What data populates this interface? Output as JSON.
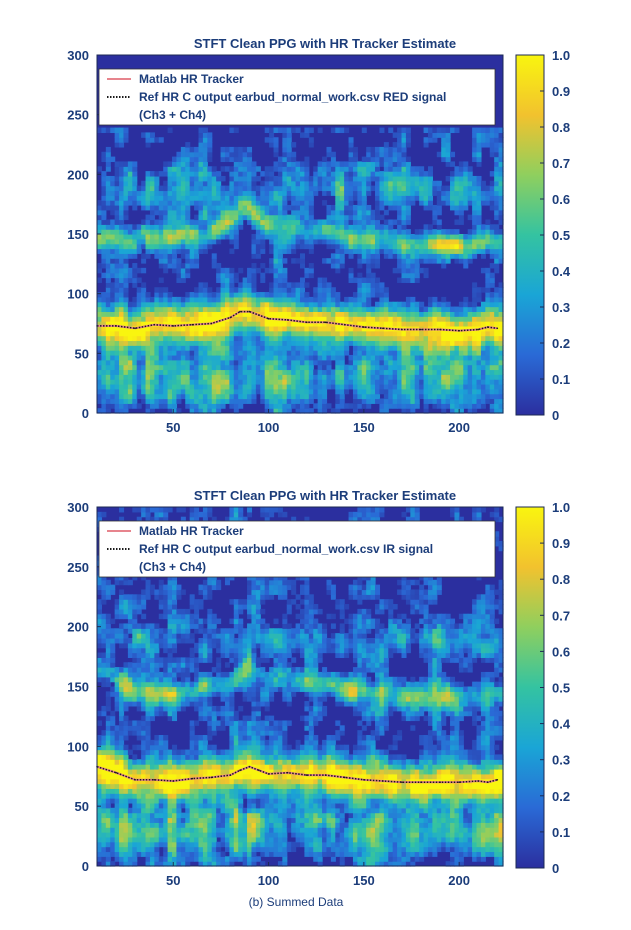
{
  "chart_data": [
    {
      "type": "heatmap",
      "title": "STFT Clean PPG with HR Tracker Estimate",
      "xlim": [
        10,
        223
      ],
      "ylim": [
        0,
        300
      ],
      "x_ticks": [
        50,
        100,
        150,
        200
      ],
      "y_ticks": [
        0,
        50,
        100,
        150,
        200,
        250,
        300
      ],
      "colorbar": {
        "min": 0,
        "max": 1.0,
        "ticks": [
          "0",
          "0.1",
          "0.2",
          "0.3",
          "0.4",
          "0.5",
          "0.6",
          "0.7",
          "0.8",
          "0.9",
          "1.0"
        ]
      },
      "colormap": [
        "#2b2f9f",
        "#2a6ad6",
        "#1aa5d6",
        "#34c3a1",
        "#8fcf5e",
        "#f2c22e",
        "#f9f50f"
      ],
      "legend": {
        "placement": "top-left",
        "entries": [
          {
            "label": "Matlab HR Tracker",
            "style": "solid",
            "color": "#e7848d"
          },
          {
            "label": "Ref HR C output earbud_normal_work.csv RED signal",
            "style": "dotted",
            "color": "#1a1a1a"
          },
          {
            "label": "(Ch3 + Ch4)",
            "style": "none",
            "color": ""
          }
        ]
      },
      "series": [
        {
          "x": [
            10,
            20,
            30,
            40,
            50,
            60,
            70,
            80,
            85,
            90,
            95,
            100,
            110,
            120,
            130,
            140,
            150,
            160,
            170,
            180,
            190,
            200,
            210,
            215,
            220
          ],
          "y": [
            73,
            73,
            71,
            74,
            73,
            74,
            75,
            80,
            85,
            85,
            82,
            79,
            78,
            76,
            76,
            74,
            72,
            71,
            70,
            70,
            70,
            69,
            70,
            72,
            71
          ]
        }
      ]
    },
    {
      "type": "heatmap",
      "title": "STFT Clean PPG with HR Tracker Estimate",
      "xlim": [
        10,
        223
      ],
      "ylim": [
        0,
        300
      ],
      "x_ticks": [
        50,
        100,
        150,
        200
      ],
      "y_ticks": [
        0,
        50,
        100,
        150,
        200,
        250,
        300
      ],
      "colorbar": {
        "min": 0,
        "max": 1.0,
        "ticks": [
          "0",
          "0.1",
          "0.2",
          "0.3",
          "0.4",
          "0.5",
          "0.6",
          "0.7",
          "0.8",
          "0.9",
          "1.0"
        ]
      },
      "colormap": [
        "#2b2f9f",
        "#2a6ad6",
        "#1aa5d6",
        "#34c3a1",
        "#8fcf5e",
        "#f2c22e",
        "#f9f50f"
      ],
      "legend": {
        "placement": "top-left",
        "entries": [
          {
            "label": "Matlab HR Tracker",
            "style": "solid",
            "color": "#e7848d"
          },
          {
            "label": "Ref HR C output earbud_normal_work.csv IR signal",
            "style": "dotted",
            "color": "#1a1a1a"
          },
          {
            "label": "(Ch3 + Ch4)",
            "style": "none",
            "color": ""
          }
        ]
      },
      "series": [
        {
          "x": [
            10,
            20,
            30,
            40,
            50,
            60,
            70,
            80,
            85,
            90,
            95,
            100,
            110,
            120,
            130,
            140,
            150,
            160,
            170,
            180,
            190,
            200,
            210,
            215,
            220
          ],
          "y": [
            83,
            78,
            72,
            72,
            71,
            73,
            74,
            76,
            80,
            83,
            80,
            77,
            78,
            76,
            76,
            74,
            72,
            71,
            70,
            70,
            70,
            70,
            71,
            70,
            72
          ]
        }
      ]
    }
  ],
  "caption": "(b) Summed Data"
}
